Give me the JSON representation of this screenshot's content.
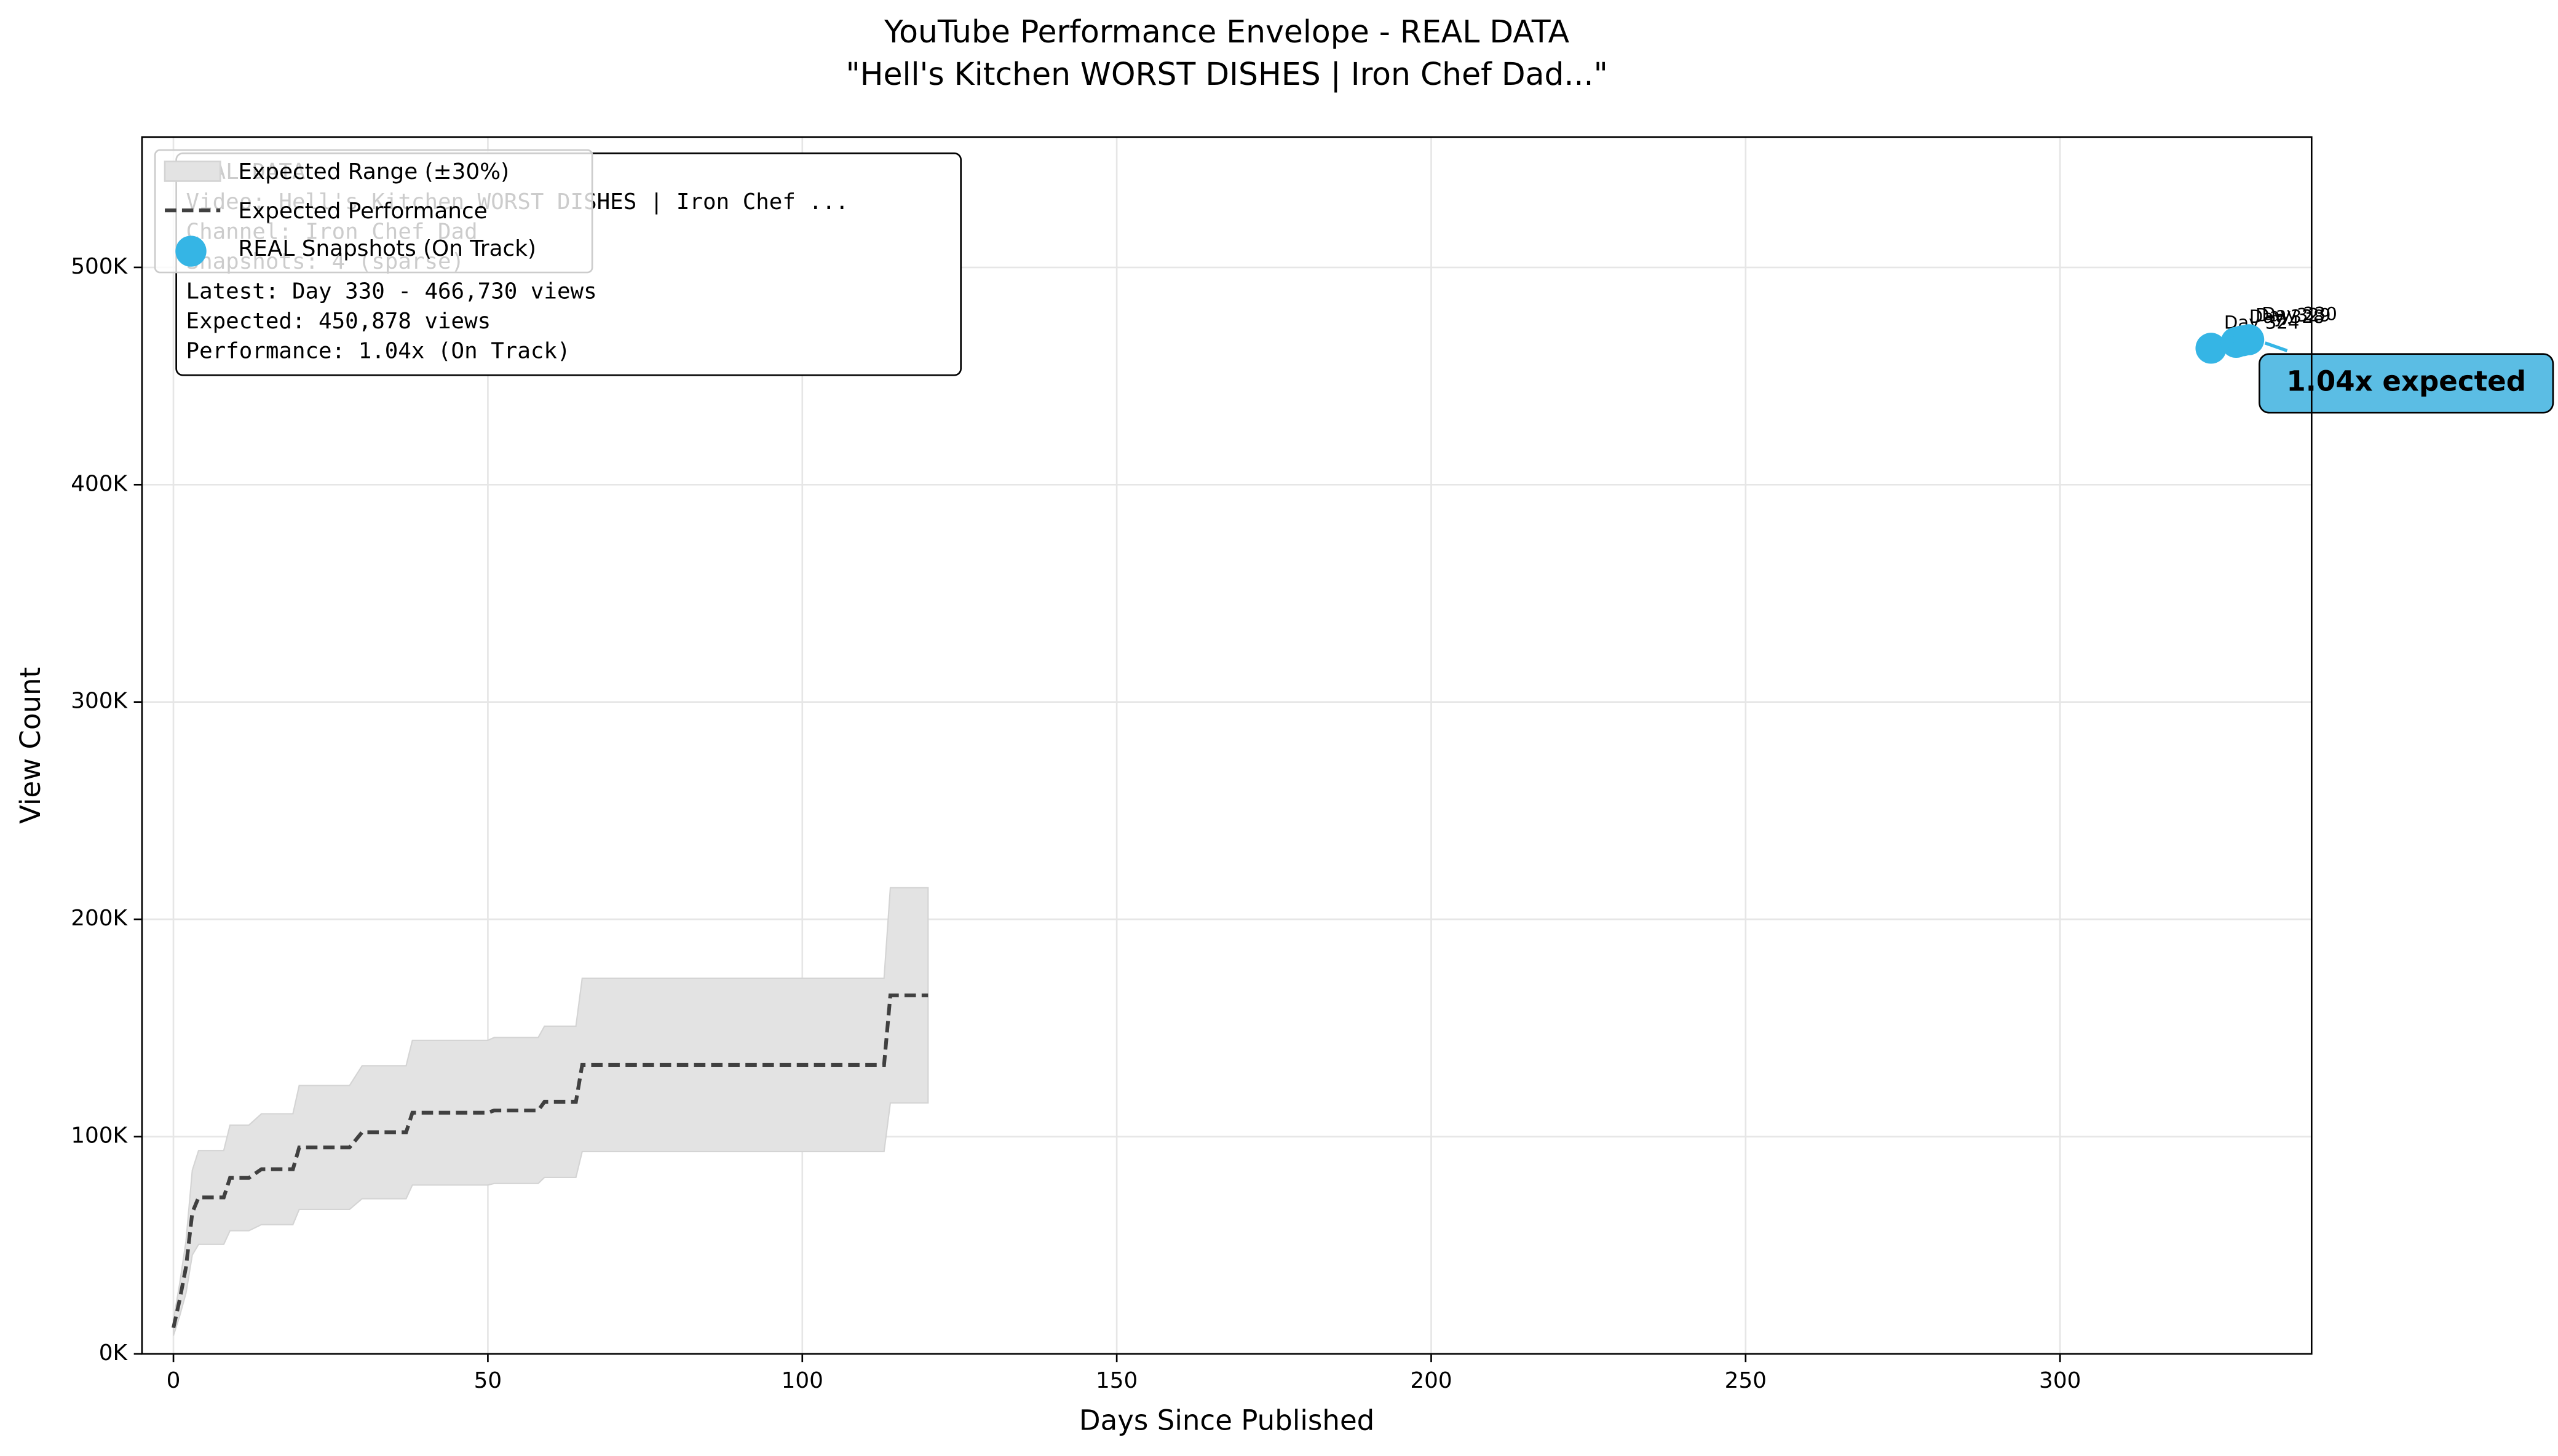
{
  "chart_data": {
    "type": "line",
    "title": "YouTube Performance Envelope - REAL DATA",
    "subtitle": "\"Hell's Kitchen WORST DISHES | Iron Chef Dad...\"",
    "xlabel": "Days Since Published",
    "ylabel": "View Count",
    "xlim": [
      -5,
      340
    ],
    "ylim": [
      0,
      560000
    ],
    "xticks": [
      0,
      50,
      100,
      150,
      200,
      250,
      300
    ],
    "yticks": [
      {
        "value": 0,
        "label": "0K"
      },
      {
        "value": 100000,
        "label": "100K"
      },
      {
        "value": 200000,
        "label": "200K"
      },
      {
        "value": 300000,
        "label": "300K"
      },
      {
        "value": 400000,
        "label": "400K"
      },
      {
        "value": 500000,
        "label": "500K"
      }
    ],
    "grid": true,
    "legend": "upper left",
    "x": [
      0,
      1,
      2,
      3,
      4,
      8,
      9,
      12,
      14,
      19,
      20,
      28,
      30,
      37,
      38,
      50,
      51,
      58,
      59,
      64,
      65,
      113,
      114,
      120
    ],
    "series": [
      {
        "name": "Expected Performance",
        "color": "#404040",
        "dashed": true,
        "values": [
          12000,
          25000,
          40000,
          65000,
          72000,
          72000,
          81000,
          81000,
          85000,
          85000,
          95000,
          95000,
          102000,
          102000,
          111000,
          111000,
          112000,
          112000,
          116000,
          116000,
          133000,
          133000,
          165000,
          165000
        ]
      }
    ],
    "band": {
      "name": "Expected Range (±30%)",
      "color": "#e3e3e3",
      "lower": [
        8400,
        17500,
        28000,
        45500,
        50400,
        50400,
        56700,
        56700,
        59500,
        59500,
        66500,
        66500,
        71400,
        71400,
        77700,
        77700,
        78400,
        78400,
        81200,
        81200,
        93100,
        93100,
        115500,
        115500
      ],
      "upper": [
        15600,
        32500,
        52000,
        84500,
        93600,
        93600,
        105300,
        105300,
        110500,
        110500,
        123500,
        123500,
        132600,
        132600,
        144300,
        144300,
        145600,
        145600,
        150800,
        150800,
        172900,
        172900,
        214500,
        214500
      ]
    },
    "snapshots": {
      "name": "REAL Snapshots (On Track)",
      "color": "#35b5e5",
      "x": [
        324,
        328,
        329,
        330
      ],
      "values": [
        462800,
        465500,
        466200,
        466730
      ],
      "labels": [
        "Day 324",
        "Day 328",
        "Day 329",
        "Day 330"
      ]
    },
    "annotation": "1.04x expected",
    "info_box": [
      "REAL DATA",
      "Video: Hell's Kitchen WORST DISHES | Iron Chef ...",
      "Channel: Iron Chef Dad",
      "Snapshots: 4 (sparse)",
      "Latest: Day 330 - 466,730 views",
      "Expected: 450,878 views",
      "Performance: 1.04x (On Track)"
    ]
  }
}
